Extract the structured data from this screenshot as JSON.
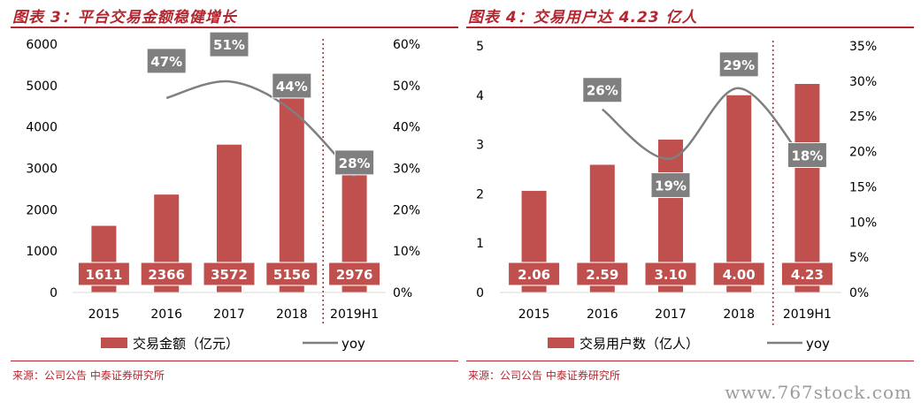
{
  "watermark": "www.767stock.com",
  "colors": {
    "bar": "#c0504d",
    "line": "#7f7f7f",
    "label_box": "#7f7f7f",
    "accent": "#b3262f",
    "axis_text": "#000000"
  },
  "chart_data": [
    {
      "type": "bar",
      "title": "图表 3：平台交易金额稳健增长",
      "source": "来源：公司公告  中泰证券研究所",
      "categories": [
        "2015",
        "2016",
        "2017",
        "2018",
        "2019H1"
      ],
      "series": [
        {
          "name": "交易金额（亿元）",
          "type": "bar",
          "axis": "left",
          "values": [
            1611,
            2366,
            3572,
            5156,
            2976
          ],
          "labels": [
            "1611",
            "2366",
            "3572",
            "5156",
            "2976"
          ]
        },
        {
          "name": "yoy",
          "type": "line",
          "axis": "right",
          "values": [
            null,
            0.47,
            0.51,
            0.44,
            0.28
          ],
          "labels": [
            "",
            "47%",
            "51%",
            "44%",
            "28%"
          ]
        }
      ],
      "y_left": {
        "min": 0,
        "max": 6000,
        "ticks": [
          0,
          1000,
          2000,
          3000,
          4000,
          5000,
          6000
        ],
        "tick_labels": [
          "0",
          "1000",
          "2000",
          "3000",
          "4000",
          "5000",
          "6000"
        ]
      },
      "y_right": {
        "min": 0,
        "max": 0.6,
        "ticks": [
          0,
          0.1,
          0.2,
          0.3,
          0.4,
          0.5,
          0.6
        ],
        "tick_labels": [
          "0%",
          "10%",
          "20%",
          "30%",
          "40%",
          "50%",
          "60%"
        ]
      },
      "divider_after_category": "2018",
      "legend_position": "bottom",
      "grid": false
    },
    {
      "type": "bar",
      "title": "图表 4：交易用户达 4.23 亿人",
      "source": "来源：公司公告  中泰证券研究所",
      "categories": [
        "2015",
        "2016",
        "2017",
        "2018",
        "2019H1"
      ],
      "series": [
        {
          "name": "交易用户数（亿人）",
          "type": "bar",
          "axis": "left",
          "values": [
            2.06,
            2.59,
            3.1,
            4.0,
            4.23
          ],
          "labels": [
            "2.06",
            "2.59",
            "3.10",
            "4.00",
            "4.23"
          ]
        },
        {
          "name": "yoy",
          "type": "line",
          "axis": "right",
          "values": [
            null,
            0.26,
            0.19,
            0.29,
            0.18
          ],
          "labels": [
            "",
            "26%",
            "19%",
            "29%",
            "18%"
          ]
        }
      ],
      "y_left": {
        "min": 0,
        "max": 5,
        "ticks": [
          0,
          1,
          2,
          3,
          4,
          5
        ],
        "tick_labels": [
          "0",
          "1",
          "2",
          "3",
          "4",
          "5"
        ]
      },
      "y_right": {
        "min": 0,
        "max": 0.35,
        "ticks": [
          0,
          0.05,
          0.1,
          0.15,
          0.2,
          0.25,
          0.3,
          0.35
        ],
        "tick_labels": [
          "0%",
          "5%",
          "10%",
          "15%",
          "20%",
          "25%",
          "30%",
          "35%"
        ]
      },
      "divider_after_category": "2018",
      "legend_position": "bottom",
      "grid": false
    }
  ]
}
